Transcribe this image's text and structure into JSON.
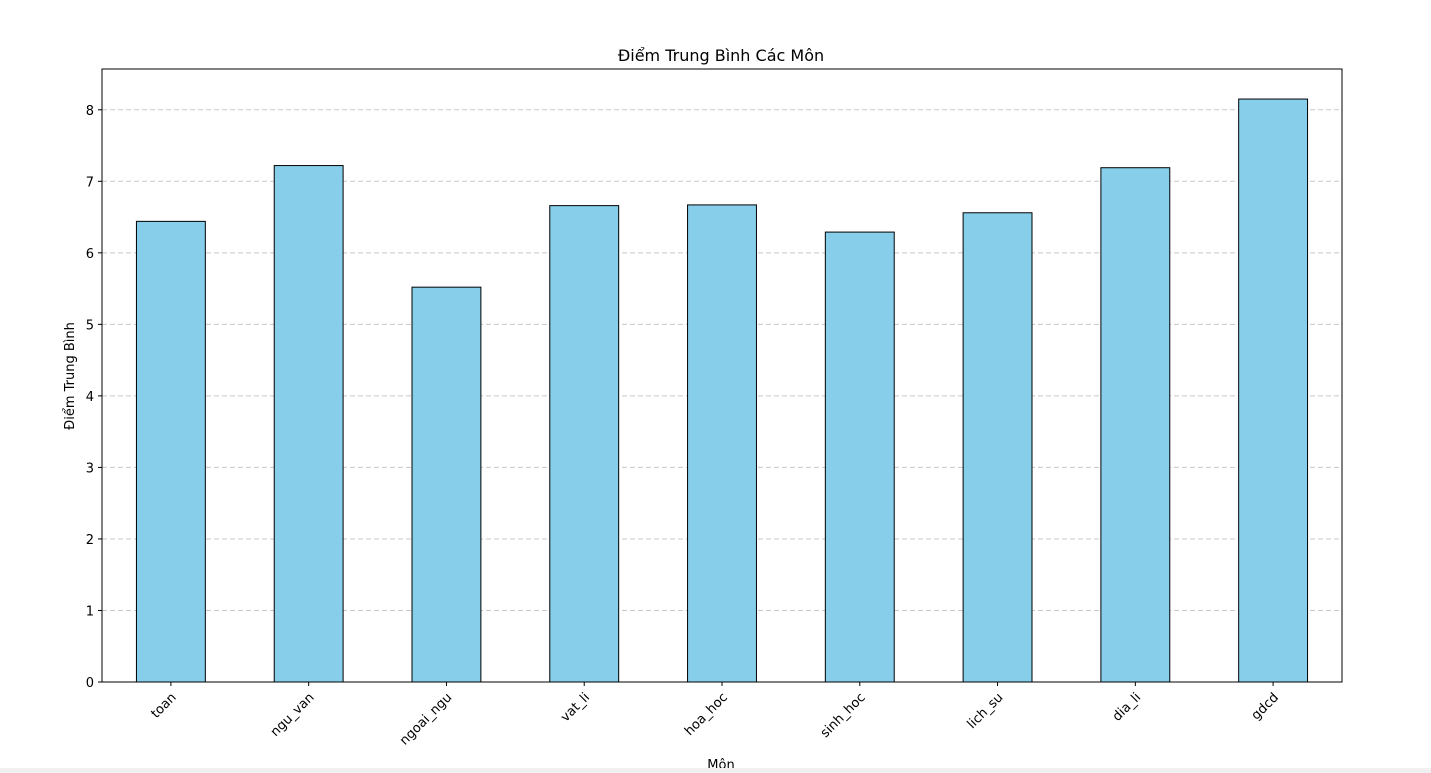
{
  "chart_data": {
    "type": "bar",
    "title": "Điểm Trung Bình Các Môn",
    "xlabel": "Môn",
    "ylabel": "Điểm Trung Bình",
    "categories": [
      "toan",
      "ngu_van",
      "ngoai_ngu",
      "vat_li",
      "hoa_hoc",
      "sinh_hoc",
      "lich_su",
      "dia_li",
      "gdcd"
    ],
    "values": [
      6.44,
      7.22,
      5.52,
      6.66,
      6.67,
      6.29,
      6.56,
      7.19,
      8.15
    ],
    "ylim": [
      0,
      8.57
    ],
    "yticks": [
      0,
      1,
      2,
      3,
      4,
      5,
      6,
      7,
      8
    ],
    "grid": "y-dashed",
    "colors": {
      "bar_fill": "#87ceeb",
      "bar_edge": "#000000",
      "grid": "#c8c8c8"
    }
  }
}
